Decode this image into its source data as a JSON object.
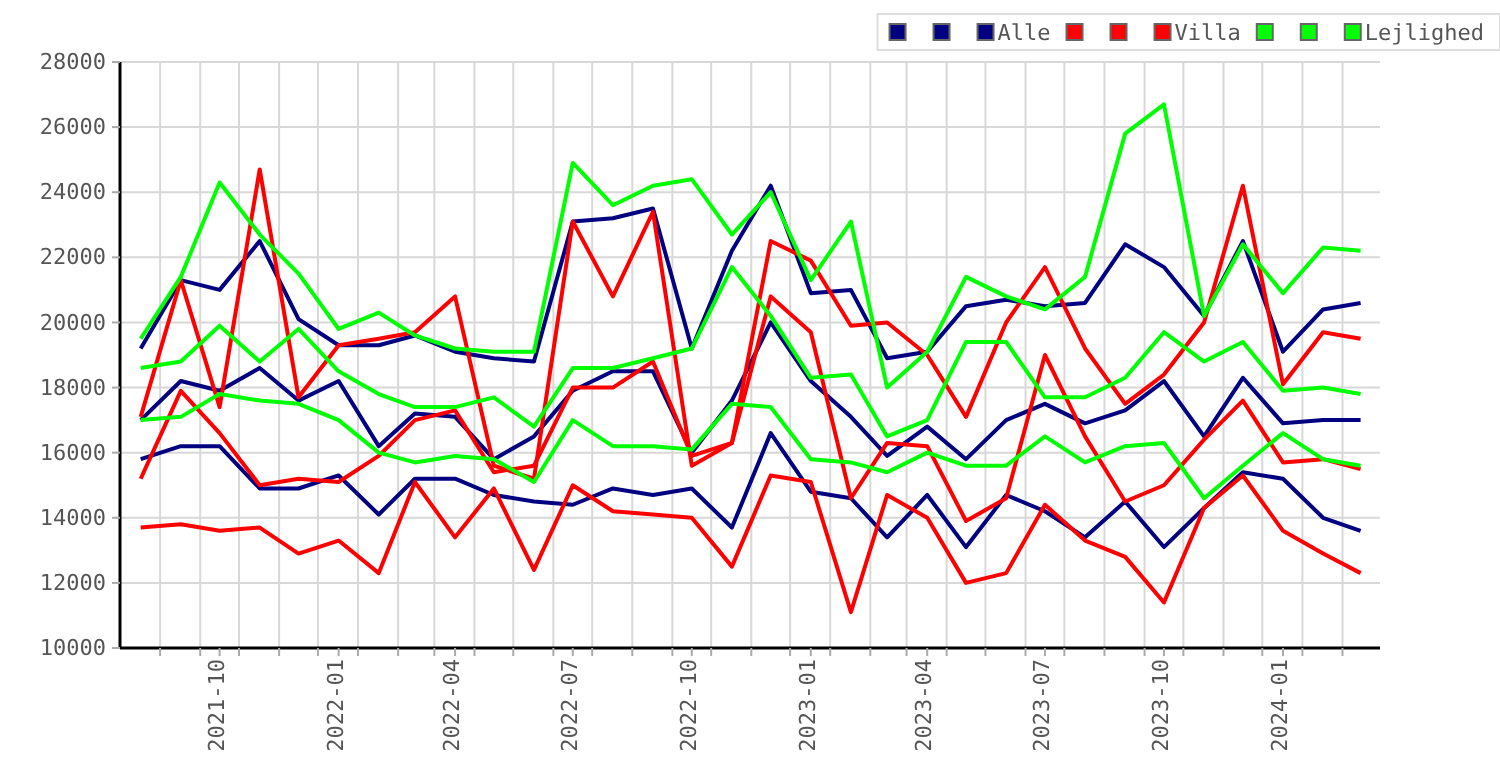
{
  "chart_data": {
    "type": "line",
    "x": [
      "2021-08",
      "2021-09",
      "2021-10",
      "2021-11",
      "2021-12",
      "2022-01",
      "2022-02",
      "2022-03",
      "2022-04",
      "2022-05",
      "2022-06",
      "2022-07",
      "2022-08",
      "2022-09",
      "2022-10",
      "2022-11",
      "2022-12",
      "2023-01",
      "2023-02",
      "2023-03",
      "2023-04",
      "2023-05",
      "2023-06",
      "2023-07",
      "2023-08",
      "2023-09",
      "2023-10",
      "2023-11",
      "2023-12",
      "2024-01",
      "2024-02",
      "2024-03"
    ],
    "xlim": [
      "2021-07-16",
      "2024-03-16"
    ],
    "xticks": [
      "2021-10",
      "2022-01",
      "2022-04",
      "2022-07",
      "2022-10",
      "2023-01",
      "2023-04",
      "2023-07",
      "2023-10",
      "2024-01",
      {
        "value": "2021-08-16",
        "label": null
      },
      {
        "value": "2021-09-16",
        "label": null
      },
      {
        "value": "2021-10-16",
        "label": null
      },
      {
        "value": "2021-11-16",
        "label": null
      },
      {
        "value": "2021-12-16",
        "label": null
      },
      {
        "value": "2022-01-16",
        "label": null
      },
      {
        "value": "2022-02-16",
        "label": null
      },
      {
        "value": "2022-03-16",
        "label": null
      },
      {
        "value": "2022-04-16",
        "label": null
      },
      {
        "value": "2022-05-16",
        "label": null
      },
      {
        "value": "2022-06-16",
        "label": null
      },
      {
        "value": "2022-07-16",
        "label": null
      },
      {
        "value": "2022-08-16",
        "label": null
      },
      {
        "value": "2022-09-16",
        "label": null
      },
      {
        "value": "2022-10-16",
        "label": null
      },
      {
        "value": "2022-11-16",
        "label": null
      },
      {
        "value": "2022-12-16",
        "label": null
      },
      {
        "value": "2023-01-16",
        "label": null
      },
      {
        "value": "2023-02-16",
        "label": null
      },
      {
        "value": "2023-03-16",
        "label": null
      },
      {
        "value": "2023-04-16",
        "label": null
      },
      {
        "value": "2023-05-16",
        "label": null
      },
      {
        "value": "2023-06-16",
        "label": null
      },
      {
        "value": "2023-07-16",
        "label": null
      },
      {
        "value": "2023-08-16",
        "label": null
      },
      {
        "value": "2023-09-16",
        "label": null
      },
      {
        "value": "2023-10-16",
        "label": null
      },
      {
        "value": "2023-11-16",
        "label": null
      },
      {
        "value": "2023-12-16",
        "label": null
      },
      {
        "value": "2024-01-16",
        "label": null
      },
      {
        "value": "2024-02-16",
        "label": null
      }
    ],
    "ylim": [
      10000,
      28000
    ],
    "yticks": [
      10000,
      12000,
      14000,
      16000,
      18000,
      20000,
      22000,
      24000,
      26000,
      28000
    ],
    "grid": true,
    "legend": "top right",
    "series": [
      {
        "color": "#000080",
        "values": [
          19200,
          21300,
          21000,
          22500,
          20100,
          19300,
          19300,
          19600,
          19100,
          18900,
          18800,
          23100,
          23200,
          23500,
          19200,
          22200,
          24200,
          20900,
          21000,
          18900,
          19100,
          20500,
          20700,
          20500,
          20600,
          22400,
          21700,
          20200,
          22500,
          19100,
          20400,
          20600
        ]
      },
      {
        "color": "#000080",
        "values": [
          17000,
          18200,
          17900,
          18600,
          17600,
          18200,
          16200,
          17200,
          17100,
          15800,
          16500,
          17900,
          18500,
          18500,
          16000,
          17600,
          20000,
          18200,
          17100,
          15900,
          16800,
          15800,
          17000,
          17500,
          16900,
          17300,
          18200,
          16500,
          18300,
          16900,
          17000,
          17000
        ]
      },
      {
        "name": "Alle",
        "color": "#000080",
        "values": [
          15800,
          16200,
          16200,
          14900,
          14900,
          15300,
          14100,
          15200,
          15200,
          14700,
          14500,
          14400,
          14900,
          14700,
          14900,
          13700,
          16600,
          14800,
          14600,
          13400,
          14700,
          13100,
          14700,
          14200,
          13400,
          14500,
          13100,
          14300,
          15400,
          15200,
          14000,
          13600
        ]
      },
      {
        "color": "#ff0000",
        "values": [
          17100,
          21300,
          17400,
          24700,
          17700,
          19300,
          19500,
          19700,
          20800,
          15600,
          15200,
          23100,
          20800,
          23400,
          15600,
          16300,
          22500,
          21900,
          19900,
          20000,
          19000,
          17100,
          20000,
          21700,
          19200,
          17500,
          18400,
          20000,
          24200,
          18100,
          19700,
          19500
        ]
      },
      {
        "color": "#ff0000",
        "values": [
          15200,
          17900,
          16600,
          15000,
          15200,
          15100,
          15900,
          17000,
          17300,
          15400,
          15600,
          18000,
          18000,
          18800,
          15900,
          16300,
          20800,
          19700,
          14600,
          16300,
          16200,
          13900,
          14600,
          19000,
          16500,
          14500,
          15000,
          16400,
          17600,
          15700,
          15800,
          15500
        ]
      },
      {
        "name": "Villa",
        "color": "#ff0000",
        "values": [
          13700,
          13800,
          13600,
          13700,
          12900,
          13300,
          12300,
          15100,
          13400,
          14900,
          12400,
          15000,
          14200,
          14100,
          14000,
          12500,
          15300,
          15100,
          11100,
          14700,
          14000,
          12000,
          12300,
          14400,
          13300,
          12800,
          11400,
          14300,
          15300,
          13600,
          12900,
          12300
        ]
      },
      {
        "color": "#00ff00",
        "values": [
          19500,
          21400,
          24300,
          22700,
          21500,
          19800,
          20300,
          19600,
          19200,
          19100,
          19100,
          24900,
          23600,
          24200,
          24400,
          22700,
          24000,
          21300,
          23100,
          18000,
          19100,
          21400,
          20800,
          20400,
          21400,
          25800,
          26700,
          20200,
          22400,
          20900,
          22300,
          22200
        ]
      },
      {
        "color": "#00ff00",
        "values": [
          18600,
          18800,
          19900,
          18800,
          19800,
          18500,
          17800,
          17400,
          17400,
          17700,
          16800,
          18600,
          18600,
          18900,
          19200,
          21700,
          20200,
          18300,
          18400,
          16500,
          17000,
          19400,
          19400,
          17700,
          17700,
          18300,
          19700,
          18800,
          19400,
          17900,
          18000,
          17800
        ]
      },
      {
        "name": "Lejlighed",
        "color": "#00ff00",
        "values": [
          17000,
          17100,
          17800,
          17600,
          17500,
          17000,
          16000,
          15700,
          15900,
          15800,
          15100,
          17000,
          16200,
          16200,
          16100,
          17500,
          17400,
          15800,
          15700,
          15400,
          16000,
          15600,
          15600,
          16500,
          15700,
          16200,
          16300,
          14600,
          15600,
          16600,
          15800,
          15600
        ]
      }
    ]
  }
}
